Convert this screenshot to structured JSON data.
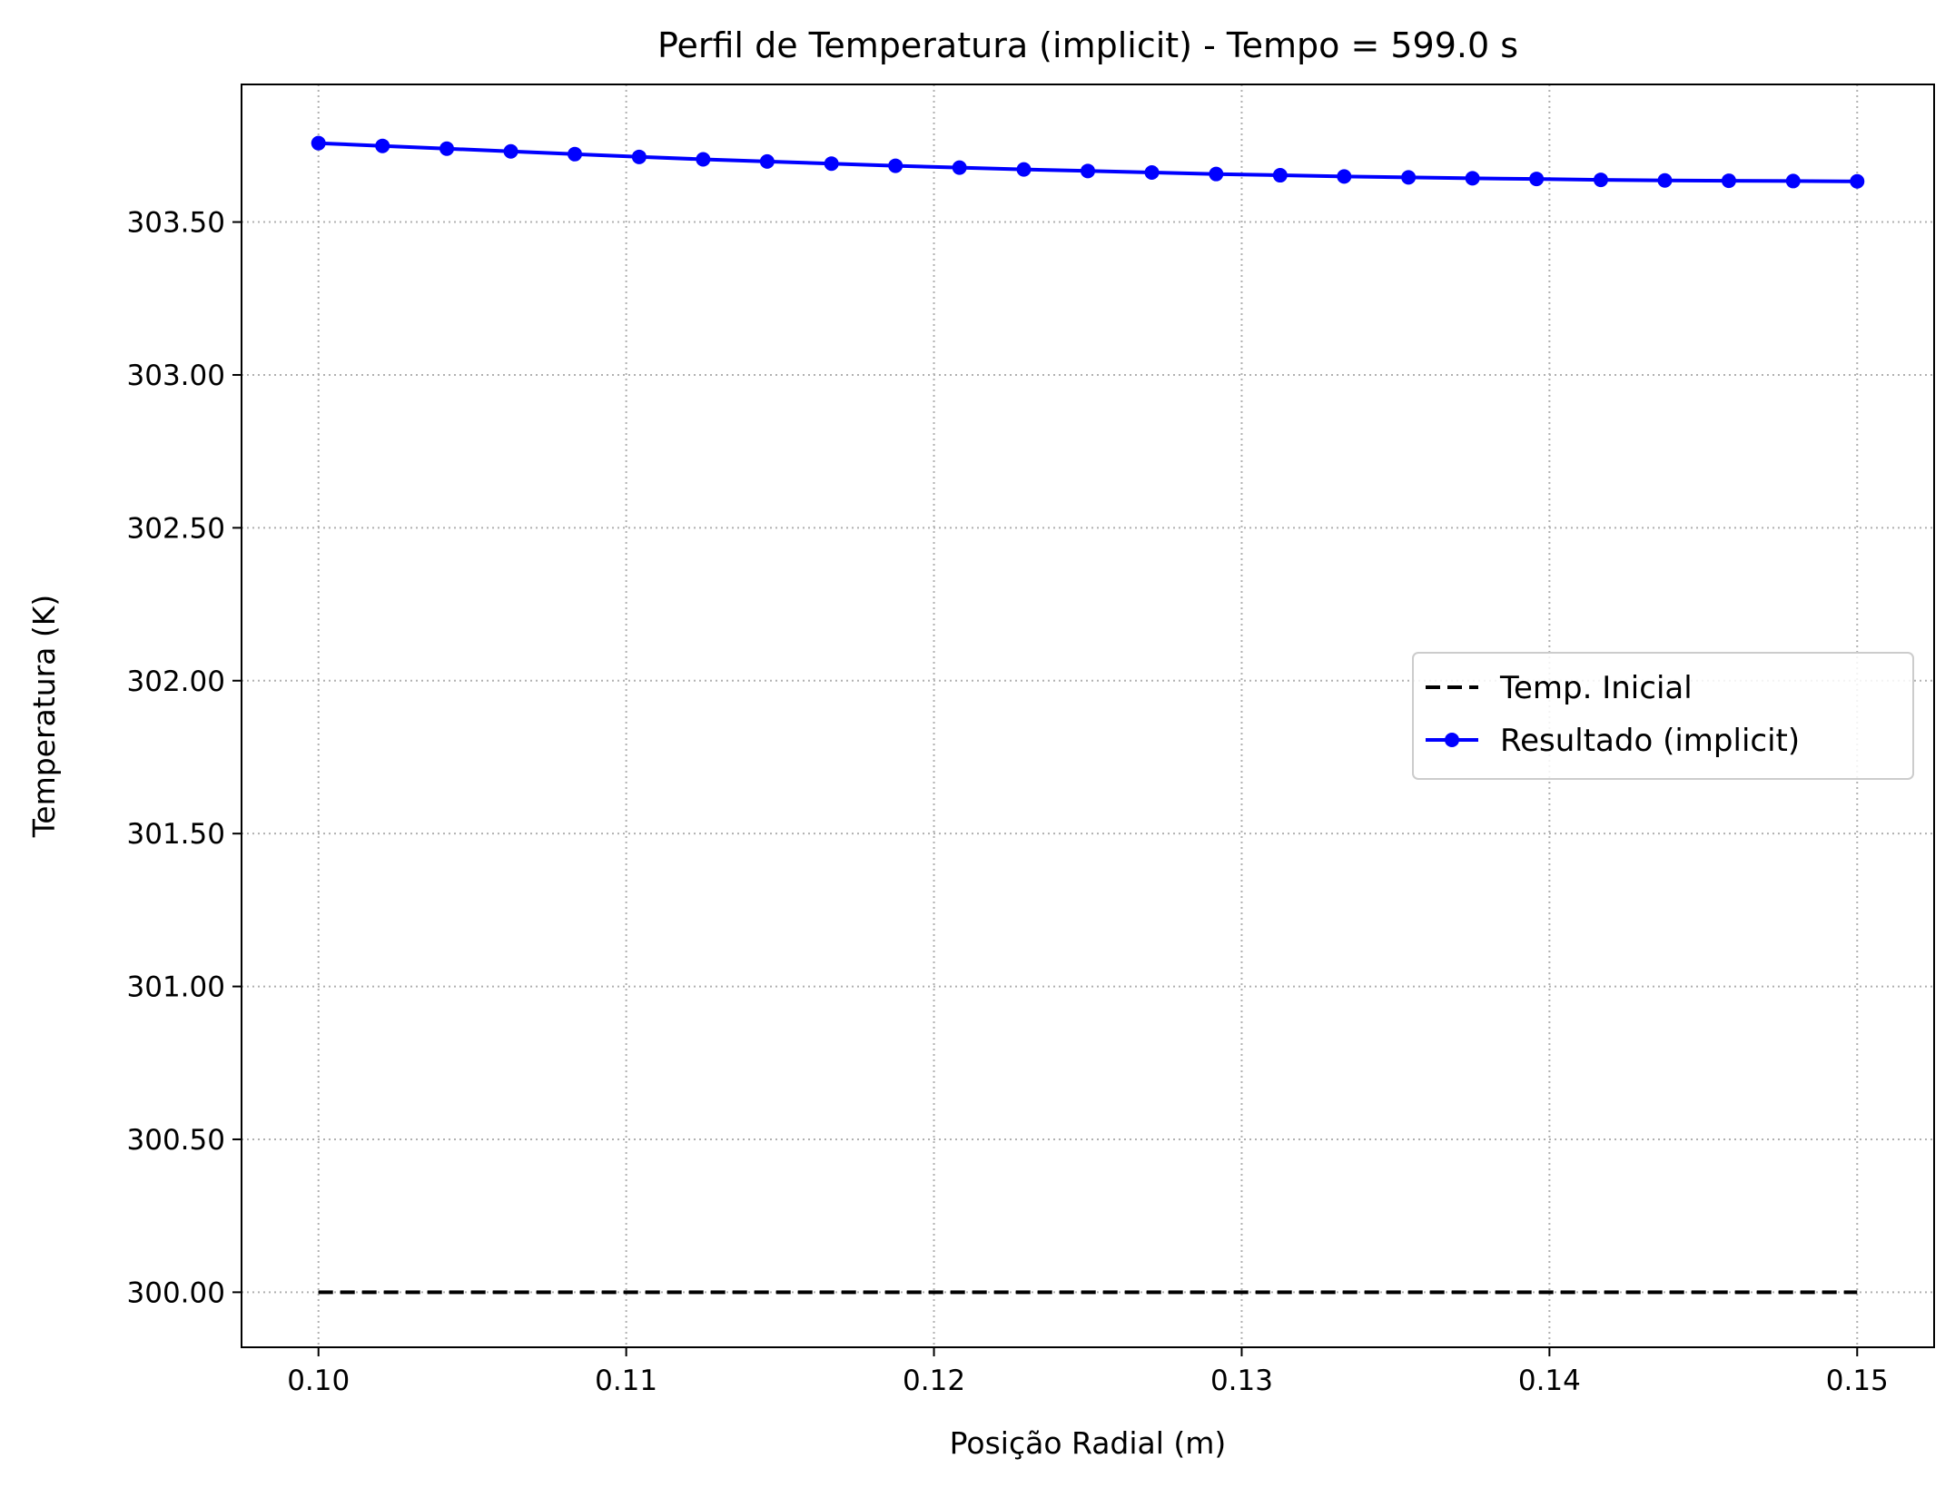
{
  "chart_data": {
    "type": "line",
    "title": "Perfil de Temperatura (implicit) - Tempo = 599.0 s",
    "xlabel": "Posição Radial (m)",
    "ylabel": "Temperatura (K)",
    "xlim": [
      0.0975,
      0.1525
    ],
    "ylim": [
      299.82,
      303.95
    ],
    "x_ticks": [
      0.1,
      0.11,
      0.12,
      0.13,
      0.14,
      0.15
    ],
    "x_tick_labels": [
      "0.10",
      "0.11",
      "0.12",
      "0.13",
      "0.14",
      "0.15"
    ],
    "y_ticks": [
      300.0,
      300.5,
      301.0,
      301.5,
      302.0,
      302.5,
      303.0,
      303.5
    ],
    "y_tick_labels": [
      "300.00",
      "300.50",
      "301.00",
      "301.50",
      "302.00",
      "302.50",
      "303.00",
      "303.50"
    ],
    "grid": true,
    "legend_position": "center-right",
    "series": [
      {
        "name": "Temp. Inicial",
        "style": "dashed",
        "color": "#000000",
        "x": [
          0.1,
          0.15
        ],
        "y": [
          300.0,
          300.0
        ]
      },
      {
        "name": "Resultado (implicit)",
        "style": "solid-markers",
        "color": "#0000ff",
        "x": [
          0.1,
          0.10208,
          0.10417,
          0.10625,
          0.10833,
          0.11042,
          0.1125,
          0.11458,
          0.11667,
          0.11875,
          0.12083,
          0.12292,
          0.125,
          0.12708,
          0.12917,
          0.13125,
          0.13333,
          0.13542,
          0.1375,
          0.13958,
          0.14167,
          0.14375,
          0.14583,
          0.14792,
          0.15
        ],
        "y": [
          303.758,
          303.749,
          303.74,
          303.731,
          303.722,
          303.713,
          303.705,
          303.698,
          303.691,
          303.684,
          303.678,
          303.672,
          303.667,
          303.662,
          303.657,
          303.653,
          303.649,
          303.646,
          303.643,
          303.641,
          303.638,
          303.636,
          303.635,
          303.634,
          303.633
        ]
      }
    ]
  }
}
